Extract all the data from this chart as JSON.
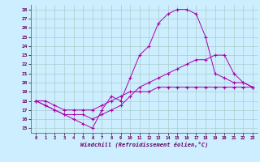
{
  "xlabel": "Windchill (Refroidissement éolien,°C)",
  "background_color": "#cceeff",
  "grid_color": "#aacccc",
  "line_color": "#aa00aa",
  "xlim": [
    -0.5,
    23.5
  ],
  "ylim": [
    14.5,
    28.5
  ],
  "yticks": [
    15,
    16,
    17,
    18,
    19,
    20,
    21,
    22,
    23,
    24,
    25,
    26,
    27,
    28
  ],
  "xticks": [
    0,
    1,
    2,
    3,
    4,
    5,
    6,
    7,
    8,
    9,
    10,
    11,
    12,
    13,
    14,
    15,
    16,
    17,
    18,
    19,
    20,
    21,
    22,
    23
  ],
  "curve1_x": [
    0,
    1,
    2,
    3,
    4,
    5,
    6,
    7,
    8,
    9,
    10,
    11,
    12,
    13,
    14,
    15,
    16,
    17,
    18,
    19,
    20,
    21,
    22,
    23
  ],
  "curve1_y": [
    18.0,
    17.5,
    17.0,
    16.5,
    16.0,
    15.5,
    15.0,
    17.0,
    18.5,
    18.0,
    20.5,
    23.0,
    24.0,
    26.5,
    27.5,
    28.0,
    28.0,
    27.5,
    25.0,
    21.0,
    20.5,
    20.0,
    20.0,
    19.5
  ],
  "curve2_x": [
    0,
    1,
    2,
    3,
    4,
    5,
    6,
    7,
    8,
    9,
    10,
    11,
    12,
    13,
    14,
    15,
    16,
    17,
    18,
    19,
    20,
    21,
    22,
    23
  ],
  "curve2_y": [
    18.0,
    17.5,
    17.0,
    16.5,
    16.5,
    16.5,
    16.0,
    16.5,
    17.0,
    17.5,
    18.5,
    19.5,
    20.0,
    20.5,
    21.0,
    21.5,
    22.0,
    22.5,
    22.5,
    23.0,
    23.0,
    21.0,
    20.0,
    19.5
  ],
  "curve3_x": [
    0,
    1,
    2,
    3,
    4,
    5,
    6,
    7,
    8,
    9,
    10,
    11,
    12,
    13,
    14,
    15,
    16,
    17,
    18,
    19,
    20,
    21,
    22,
    23
  ],
  "curve3_y": [
    18.0,
    18.0,
    17.5,
    17.0,
    17.0,
    17.0,
    17.0,
    17.5,
    18.0,
    18.5,
    19.0,
    19.0,
    19.0,
    19.5,
    19.5,
    19.5,
    19.5,
    19.5,
    19.5,
    19.5,
    19.5,
    19.5,
    19.5,
    19.5
  ]
}
